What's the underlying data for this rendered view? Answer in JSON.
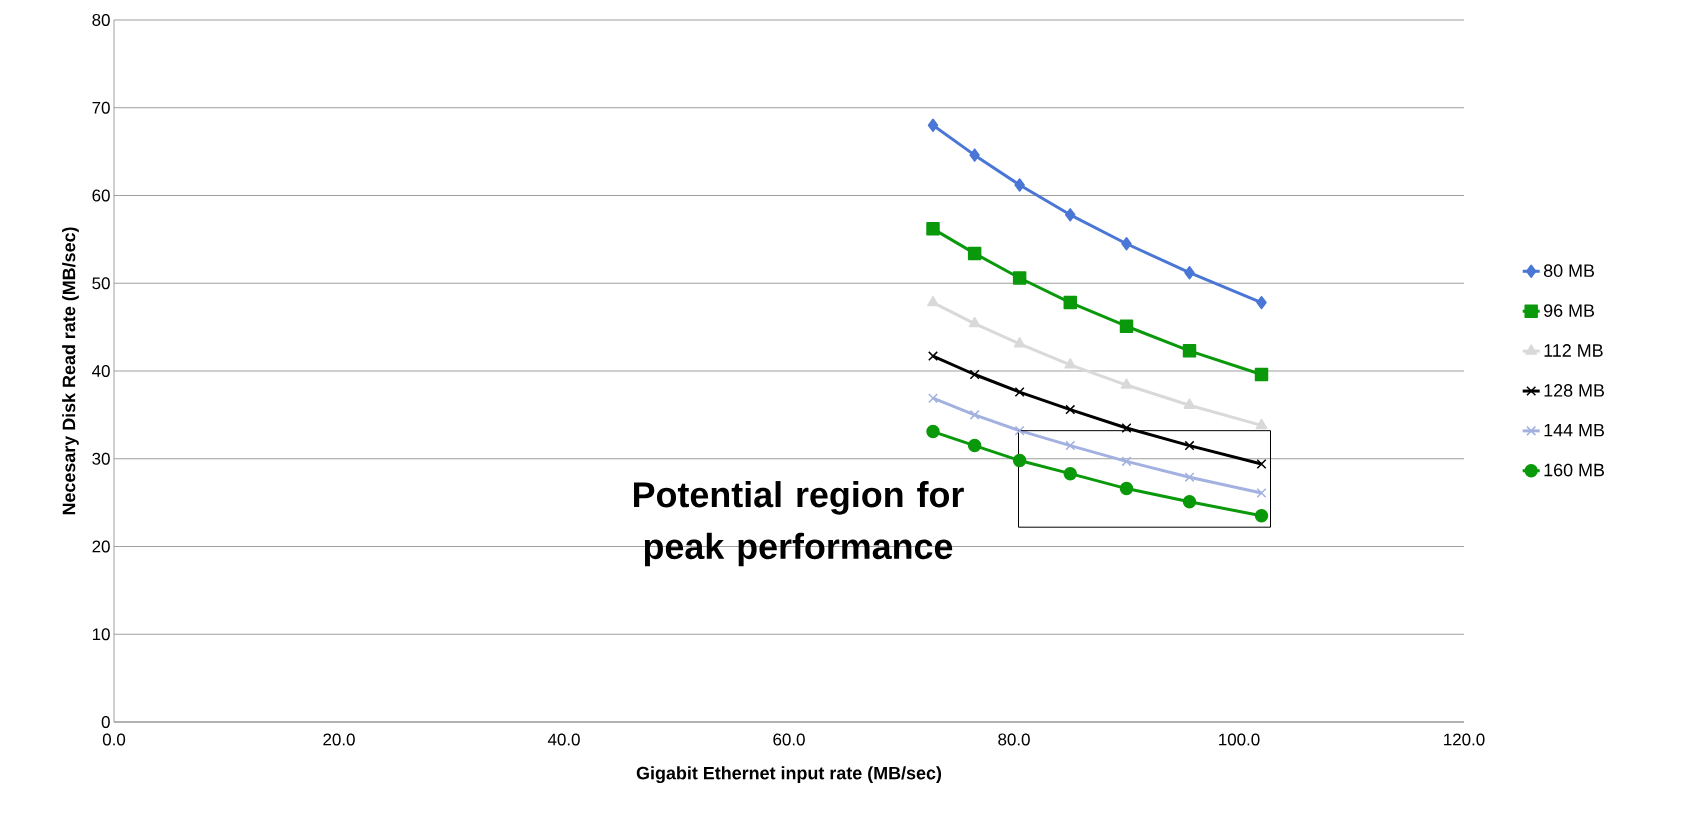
{
  "chart_data": {
    "type": "line",
    "xlabel": "Gigabit Ethernet input rate (MB/sec)",
    "ylabel": "Necesary Disk Read rate (MB/sec)",
    "x": [
      72.8,
      76.5,
      80.5,
      85.0,
      90.0,
      95.6,
      102.0
    ],
    "series": [
      {
        "name": "80 MB",
        "color": "#4a76d6",
        "marker": "diamond",
        "values": [
          68.0,
          64.6,
          61.2,
          57.8,
          54.5,
          51.2,
          47.8
        ]
      },
      {
        "name": "96 MB",
        "color": "#0a990a",
        "marker": "square",
        "values": [
          56.2,
          53.4,
          50.6,
          47.8,
          45.1,
          42.3,
          39.6
        ]
      },
      {
        "name": "112 MB",
        "color": "#d9d9d9",
        "marker": "triangle",
        "values": [
          47.8,
          45.4,
          43.1,
          40.7,
          38.4,
          36.1,
          33.8
        ]
      },
      {
        "name": "128 MB",
        "color": "#000000",
        "marker": "cross",
        "values": [
          41.7,
          39.6,
          37.6,
          35.6,
          33.5,
          31.5,
          29.4
        ]
      },
      {
        "name": "144 MB",
        "color": "#a3b1e0",
        "marker": "cross",
        "values": [
          36.9,
          35.0,
          33.2,
          31.5,
          29.7,
          27.9,
          26.1
        ]
      },
      {
        "name": "160 MB",
        "color": "#0a990a",
        "marker": "circle",
        "values": [
          33.1,
          31.5,
          29.8,
          28.3,
          26.6,
          25.1,
          23.5
        ]
      }
    ],
    "xlim": [
      0,
      120
    ],
    "xticks": [
      {
        "value": 0,
        "label": "0.0"
      },
      {
        "value": 20,
        "label": "20.0"
      },
      {
        "value": 40,
        "label": "40.0"
      },
      {
        "value": 60,
        "label": "60.0"
      },
      {
        "value": 80,
        "label": "80.0"
      },
      {
        "value": 100,
        "label": "100.0"
      },
      {
        "value": 120,
        "label": "120.0"
      }
    ],
    "ylim": [
      0,
      80
    ],
    "yticks": [
      0,
      10,
      20,
      30,
      40,
      50,
      60,
      70,
      80
    ],
    "grid": "y",
    "legend": "right",
    "line_style": "solid",
    "annotations": [
      "Potential region for peak performance"
    ]
  }
}
